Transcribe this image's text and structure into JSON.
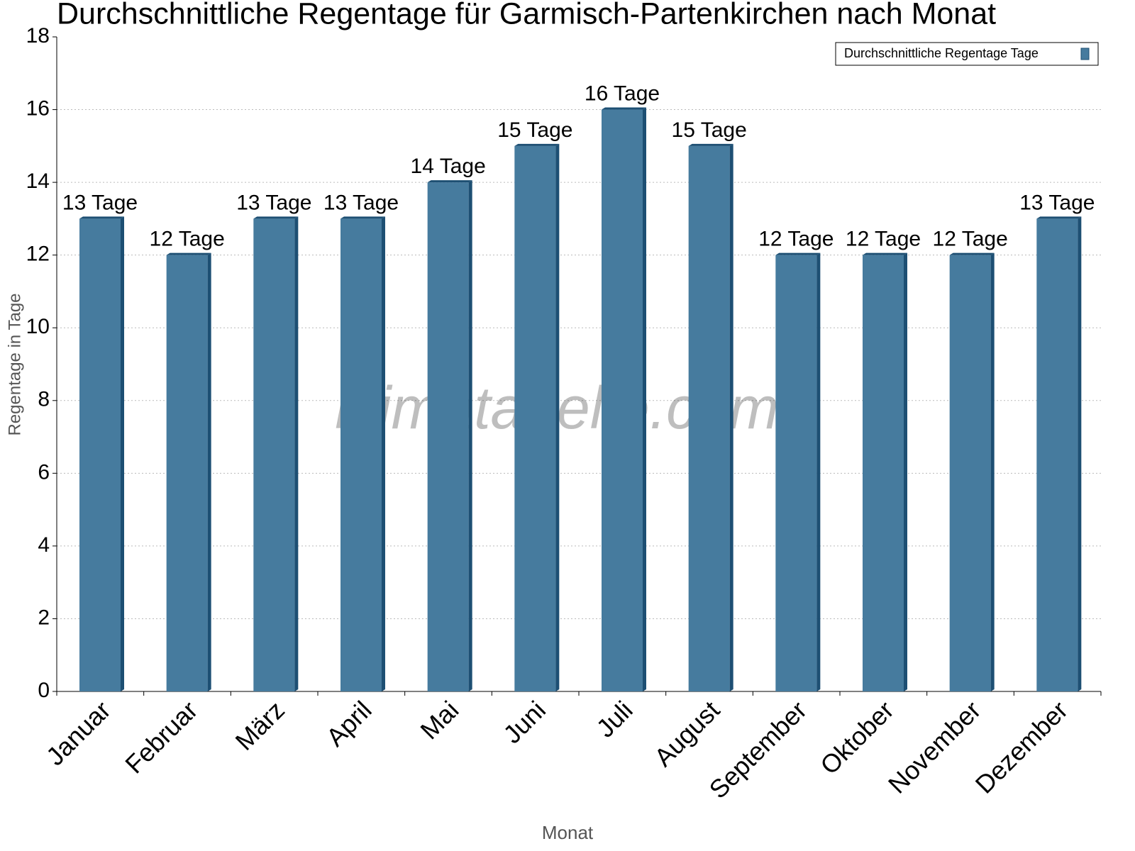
{
  "chart_data": {
    "type": "bar",
    "title": "Durchschnittliche Regentage für Garmisch-Partenkirchen nach Monat",
    "x_label": "Monat",
    "y_label": "Regentage in Tage",
    "watermark": "klimatabelle.com",
    "categories": [
      "Januar",
      "Februar",
      "März",
      "April",
      "Mai",
      "Juni",
      "Juli",
      "August",
      "September",
      "Oktober",
      "November",
      "Dezember"
    ],
    "series": [
      {
        "name": "Durchschnittliche Regentage Tage",
        "color": "#467b9e",
        "values": [
          13,
          12,
          13,
          13,
          14,
          15,
          16,
          15,
          12,
          12,
          12,
          13
        ],
        "value_labels": [
          "13 Tage",
          "12 Tage",
          "13 Tage",
          "13 Tage",
          "14 Tage",
          "15 Tage",
          "16 Tage",
          "15 Tage",
          "12 Tage",
          "12 Tage",
          "12 Tage",
          "13 Tage"
        ]
      }
    ],
    "ylim": [
      0,
      18
    ],
    "yticks": [
      0,
      2,
      4,
      6,
      8,
      10,
      12,
      14,
      16,
      18
    ],
    "grid": true,
    "legend": "top-right"
  }
}
